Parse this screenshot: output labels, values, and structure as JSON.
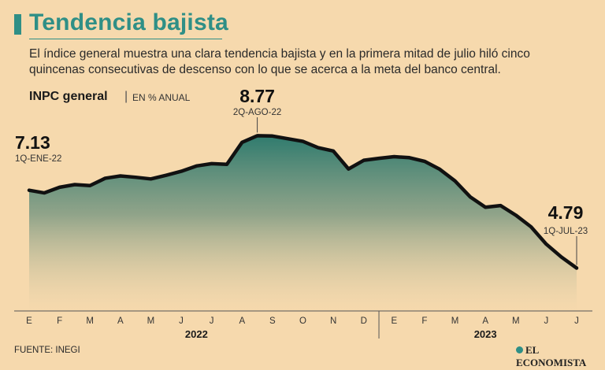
{
  "header": {
    "title": "Tendencia bajista",
    "subtitle": "El índice general muestra una clara tendencia bajista y en la primera mitad de julio hiló cinco quincenas consecutivas de descenso con lo que se acerca a la meta del banco central.",
    "series_label": "INPC general",
    "separator": "|",
    "unit": "EN % ANUAL"
  },
  "footer": {
    "source": "FUENTE: INEGI",
    "brand": "EL ECONOMISTA"
  },
  "colors": {
    "accent": "#2f8f86",
    "line": "#111111",
    "fill_top": "#2f7b6e",
    "fill_bottom": "#f6d9ad"
  },
  "chart_data": {
    "type": "area",
    "title": "INPC general",
    "ylabel": "EN % ANUAL",
    "ylim": [
      3.5,
      9.3
    ],
    "month_ticks": [
      "E",
      "F",
      "M",
      "A",
      "M",
      "J",
      "J",
      "A",
      "S",
      "O",
      "N",
      "D",
      "E",
      "F",
      "M",
      "A",
      "M",
      "J",
      "J"
    ],
    "year_labels": [
      {
        "label": "2022",
        "from_month": 0,
        "to_month": 11
      },
      {
        "label": "2023",
        "from_month": 12,
        "to_month": 18
      }
    ],
    "series": [
      {
        "name": "INPC general",
        "x_labels": [
          "1Q-ENE-22",
          "2Q-ENE-22",
          "1Q-FEB-22",
          "2Q-FEB-22",
          "1Q-MAR-22",
          "2Q-MAR-22",
          "1Q-ABR-22",
          "2Q-ABR-22",
          "1Q-MAY-22",
          "2Q-MAY-22",
          "1Q-JUN-22",
          "2Q-JUN-22",
          "1Q-JUL-22",
          "2Q-JUL-22",
          "1Q-AGO-22",
          "2Q-AGO-22",
          "1Q-SEP-22",
          "2Q-SEP-22",
          "1Q-OCT-22",
          "2Q-OCT-22",
          "1Q-NOV-22",
          "2Q-NOV-22",
          "1Q-DIC-22",
          "2Q-DIC-22",
          "1Q-ENE-23",
          "2Q-ENE-23",
          "1Q-FEB-23",
          "2Q-FEB-23",
          "1Q-MAR-23",
          "2Q-MAR-23",
          "1Q-ABR-23",
          "2Q-ABR-23",
          "1Q-MAY-23",
          "2Q-MAY-23",
          "1Q-JUN-23",
          "2Q-JUN-23",
          "1Q-JUL-23"
        ],
        "values": [
          7.13,
          7.05,
          7.22,
          7.3,
          7.27,
          7.49,
          7.56,
          7.52,
          7.47,
          7.58,
          7.7,
          7.86,
          7.93,
          7.91,
          8.57,
          8.77,
          8.76,
          8.68,
          8.6,
          8.41,
          8.31,
          7.77,
          8.03,
          8.09,
          8.14,
          8.11,
          8.0,
          7.76,
          7.41,
          6.93,
          6.62,
          6.67,
          6.38,
          6.03,
          5.51,
          5.12,
          4.79
        ]
      }
    ],
    "annotations": [
      {
        "point_index": 0,
        "value": "7.13",
        "label": "1Q-ENE-22"
      },
      {
        "point_index": 15,
        "value": "8.77",
        "label": "2Q-AGO-22"
      },
      {
        "point_index": 36,
        "value": "4.79",
        "label": "1Q-JUL-23"
      }
    ]
  }
}
